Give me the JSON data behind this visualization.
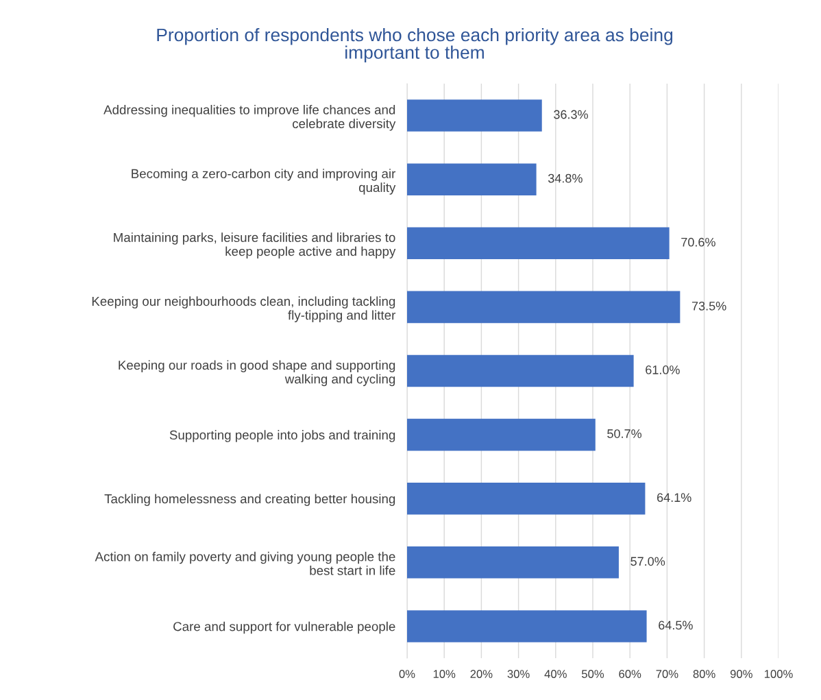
{
  "chart_data": {
    "type": "bar",
    "orientation": "horizontal",
    "title": "Proportion of respondents who chose each priority area as being\nimportant to them",
    "categories": [
      "Addressing inequalities to improve life chances and\ncelebrate diversity",
      "Becoming a zero-carbon city and improving air\nquality",
      "Maintaining parks, leisure facilities and libraries to\nkeep people active and happy",
      "Keeping our neighbourhoods clean, including tackling\nfly-tipping and litter",
      "Keeping our roads in good shape and supporting\nwalking and cycling",
      "Supporting people into jobs and training",
      "Tackling homelessness and creating better housing",
      "Action on family poverty and giving young people the\nbest start in life",
      "Care and support for vulnerable people"
    ],
    "values": [
      36.3,
      34.8,
      70.6,
      73.5,
      61.0,
      50.7,
      64.1,
      57.0,
      64.5
    ],
    "value_labels": [
      "36.3%",
      "34.8%",
      "70.6%",
      "73.5%",
      "61.0%",
      "50.7%",
      "64.1%",
      "57.0%",
      "64.5%"
    ],
    "color": "#4472c4",
    "xlim": [
      0,
      100
    ],
    "xticks": [
      {
        "value": 0,
        "label": "0%"
      },
      {
        "value": 10,
        "label": "10%"
      },
      {
        "value": 20,
        "label": "20%"
      },
      {
        "value": 30,
        "label": "30%"
      },
      {
        "value": 40,
        "label": "40%"
      },
      {
        "value": 50,
        "label": "50%"
      },
      {
        "value": 60,
        "label": "60%"
      },
      {
        "value": 70,
        "label": "70%"
      },
      {
        "value": 80,
        "label": "80%"
      },
      {
        "value": 90,
        "label": "90%"
      },
      {
        "value": 100,
        "label": "100%"
      }
    ],
    "grid": "x",
    "legend": false
  }
}
